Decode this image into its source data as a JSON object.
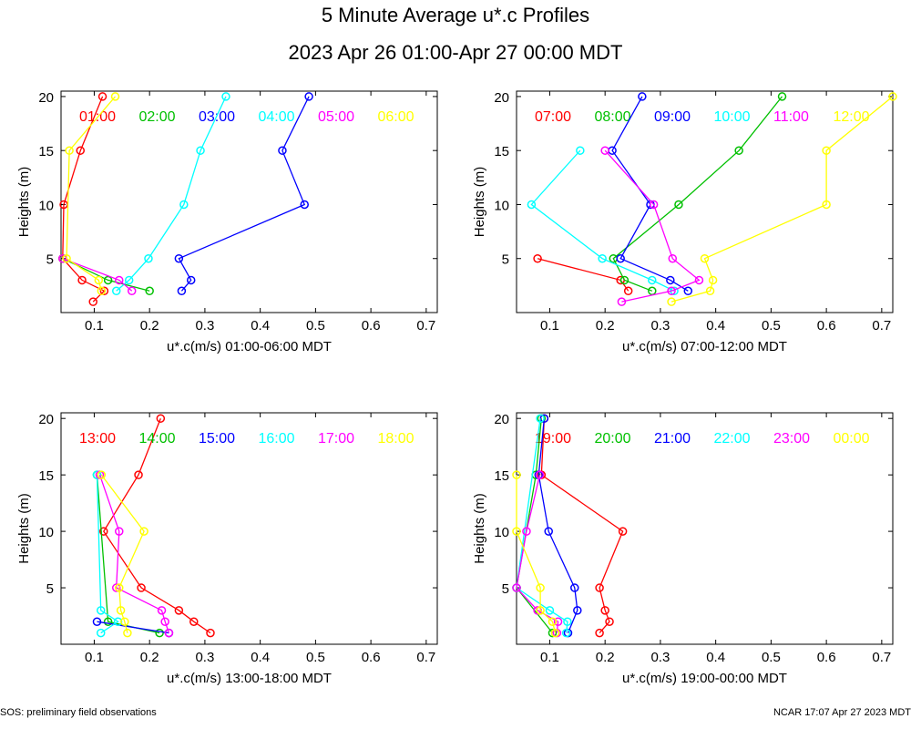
{
  "title": "5 Minute Average u*.c Profiles",
  "subtitle": "2023 Apr 26 01:00-Apr 27 00:00 MDT",
  "footer_left": "SOS: preliminary field observations",
  "footer_right": "NCAR 17:07 Apr 27 2023 MDT",
  "chart_data": [
    {
      "type": "line",
      "xlabel": "u*.c(m/s) 01:00-06:00 MDT",
      "ylabel": "Heights (m)",
      "xlim": [
        0.04,
        0.72
      ],
      "ylim": [
        0,
        20.5
      ],
      "xticks": [
        0.1,
        0.2,
        0.3,
        0.4,
        0.5,
        0.6,
        0.7
      ],
      "yticks": [
        5,
        10,
        15,
        20
      ],
      "series": [
        {
          "name": "01:00",
          "color": "#ff0000",
          "points": [
            [
              0.098,
              1
            ],
            [
              0.118,
              2
            ],
            [
              0.078,
              3
            ],
            [
              0.043,
              5
            ],
            [
              0.045,
              10
            ],
            [
              0.075,
              15
            ],
            [
              0.115,
              20
            ]
          ]
        },
        {
          "name": "02:00",
          "color": "#00c000",
          "points": [
            [
              0.2,
              2
            ],
            [
              0.125,
              3
            ],
            [
              0.043,
              5
            ]
          ]
        },
        {
          "name": "03:00",
          "color": "#0000ff",
          "points": [
            [
              0.258,
              2
            ],
            [
              0.275,
              3
            ],
            [
              0.253,
              5
            ],
            [
              0.48,
              10
            ],
            [
              0.44,
              15
            ],
            [
              0.488,
              20
            ]
          ]
        },
        {
          "name": "04:00",
          "color": "#00ffff",
          "points": [
            [
              0.14,
              2
            ],
            [
              0.163,
              3
            ],
            [
              0.198,
              5
            ],
            [
              0.262,
              10
            ],
            [
              0.292,
              15
            ],
            [
              0.338,
              20
            ]
          ]
        },
        {
          "name": "05:00",
          "color": "#ff00ff",
          "points": [
            [
              0.168,
              2
            ],
            [
              0.145,
              3
            ],
            [
              0.043,
              5
            ]
          ]
        },
        {
          "name": "06:00",
          "color": "#ffff00",
          "points": [
            [
              0.113,
              2
            ],
            [
              0.108,
              3
            ],
            [
              0.05,
              5
            ],
            [
              0.055,
              15
            ],
            [
              0.138,
              20
            ]
          ]
        }
      ]
    },
    {
      "type": "line",
      "xlabel": "u*.c(m/s) 07:00-12:00 MDT",
      "ylabel": "Heights (m)",
      "xlim": [
        0.04,
        0.72
      ],
      "ylim": [
        0,
        20.5
      ],
      "xticks": [
        0.1,
        0.2,
        0.3,
        0.4,
        0.5,
        0.6,
        0.7
      ],
      "yticks": [
        5,
        10,
        15,
        20
      ],
      "series": [
        {
          "name": "07:00",
          "color": "#ff0000",
          "points": [
            [
              0.242,
              2
            ],
            [
              0.228,
              3
            ],
            [
              0.078,
              5
            ]
          ]
        },
        {
          "name": "08:00",
          "color": "#00c000",
          "points": [
            [
              0.285,
              2
            ],
            [
              0.235,
              3
            ],
            [
              0.215,
              5
            ],
            [
              0.333,
              10
            ],
            [
              0.442,
              15
            ],
            [
              0.52,
              20
            ]
          ]
        },
        {
          "name": "09:00",
          "color": "#0000ff",
          "points": [
            [
              0.35,
              2
            ],
            [
              0.318,
              3
            ],
            [
              0.228,
              5
            ],
            [
              0.282,
              10
            ],
            [
              0.213,
              15
            ],
            [
              0.267,
              20
            ]
          ]
        },
        {
          "name": "10:00",
          "color": "#00ffff",
          "points": [
            [
              0.325,
              2
            ],
            [
              0.285,
              3
            ],
            [
              0.195,
              5
            ],
            [
              0.067,
              10
            ],
            [
              0.155,
              15
            ]
          ]
        },
        {
          "name": "11:00",
          "color": "#ff00ff",
          "points": [
            [
              0.23,
              1
            ],
            [
              0.32,
              2
            ],
            [
              0.37,
              3
            ],
            [
              0.322,
              5
            ],
            [
              0.288,
              10
            ],
            [
              0.2,
              15
            ]
          ]
        },
        {
          "name": "12:00",
          "color": "#ffff00",
          "points": [
            [
              0.32,
              1
            ],
            [
              0.39,
              2
            ],
            [
              0.395,
              3
            ],
            [
              0.38,
              5
            ],
            [
              0.6,
              10
            ],
            [
              0.6,
              15
            ],
            [
              0.72,
              20
            ]
          ]
        }
      ]
    },
    {
      "type": "line",
      "xlabel": "u*.c(m/s) 13:00-18:00 MDT",
      "ylabel": "Heights (m)",
      "xlim": [
        0.04,
        0.72
      ],
      "ylim": [
        0,
        20.5
      ],
      "xticks": [
        0.1,
        0.2,
        0.3,
        0.4,
        0.5,
        0.6,
        0.7
      ],
      "yticks": [
        5,
        10,
        15,
        20
      ],
      "series": [
        {
          "name": "13:00",
          "color": "#ff0000",
          "points": [
            [
              0.31,
              1
            ],
            [
              0.28,
              2
            ],
            [
              0.253,
              3
            ],
            [
              0.185,
              5
            ],
            [
              0.117,
              10
            ],
            [
              0.18,
              15
            ],
            [
              0.22,
              20
            ]
          ]
        },
        {
          "name": "14:00",
          "color": "#00c000",
          "points": [
            [
              0.218,
              1
            ],
            [
              0.125,
              2
            ],
            [
              0.105,
              15
            ]
          ]
        },
        {
          "name": "15:00",
          "color": "#0000ff",
          "points": [
            [
              0.235,
              1
            ],
            [
              0.105,
              2
            ]
          ]
        },
        {
          "name": "16:00",
          "color": "#00ffff",
          "points": [
            [
              0.112,
              1
            ],
            [
              0.143,
              2
            ],
            [
              0.112,
              3
            ],
            [
              0.105,
              15
            ]
          ]
        },
        {
          "name": "17:00",
          "color": "#ff00ff",
          "points": [
            [
              0.235,
              1
            ],
            [
              0.228,
              2
            ],
            [
              0.222,
              3
            ],
            [
              0.14,
              5
            ],
            [
              0.145,
              10
            ],
            [
              0.11,
              15
            ]
          ]
        },
        {
          "name": "18:00",
          "color": "#ffff00",
          "points": [
            [
              0.16,
              1
            ],
            [
              0.155,
              2
            ],
            [
              0.148,
              3
            ],
            [
              0.145,
              5
            ],
            [
              0.19,
              10
            ],
            [
              0.113,
              15
            ]
          ]
        }
      ]
    },
    {
      "type": "line",
      "xlabel": "u*.c(m/s) 19:00-00:00 MDT",
      "ylabel": "Heights (m)",
      "xlim": [
        0.04,
        0.72
      ],
      "ylim": [
        0,
        20.5
      ],
      "xticks": [
        0.1,
        0.2,
        0.3,
        0.4,
        0.5,
        0.6,
        0.7
      ],
      "yticks": [
        5,
        10,
        15,
        20
      ],
      "series": [
        {
          "name": "19:00",
          "color": "#ff0000",
          "points": [
            [
              0.19,
              1
            ],
            [
              0.208,
              2
            ],
            [
              0.2,
              3
            ],
            [
              0.19,
              5
            ],
            [
              0.232,
              10
            ],
            [
              0.085,
              15
            ],
            [
              0.09,
              20
            ]
          ]
        },
        {
          "name": "20:00",
          "color": "#00c000",
          "points": [
            [
              0.105,
              1
            ],
            [
              0.04,
              5
            ],
            [
              0.075,
              15
            ],
            [
              0.085,
              20
            ]
          ]
        },
        {
          "name": "21:00",
          "color": "#0000ff",
          "points": [
            [
              0.133,
              1
            ],
            [
              0.15,
              3
            ],
            [
              0.145,
              5
            ],
            [
              0.098,
              10
            ],
            [
              0.08,
              15
            ],
            [
              0.09,
              20
            ]
          ]
        },
        {
          "name": "22:00",
          "color": "#00ffff",
          "points": [
            [
              0.13,
              1
            ],
            [
              0.132,
              2
            ],
            [
              0.1,
              3
            ],
            [
              0.04,
              5
            ],
            [
              0.083,
              20
            ]
          ]
        },
        {
          "name": "23:00",
          "color": "#ff00ff",
          "points": [
            [
              0.113,
              1
            ],
            [
              0.115,
              2
            ],
            [
              0.078,
              3
            ],
            [
              0.04,
              5
            ],
            [
              0.058,
              10
            ],
            [
              0.082,
              15
            ]
          ]
        },
        {
          "name": "00:00",
          "color": "#ffff00",
          "points": [
            [
              0.11,
              1
            ],
            [
              0.105,
              2
            ],
            [
              0.083,
              3
            ],
            [
              0.083,
              5
            ],
            [
              0.04,
              10
            ],
            [
              0.04,
              15
            ]
          ]
        }
      ]
    }
  ]
}
